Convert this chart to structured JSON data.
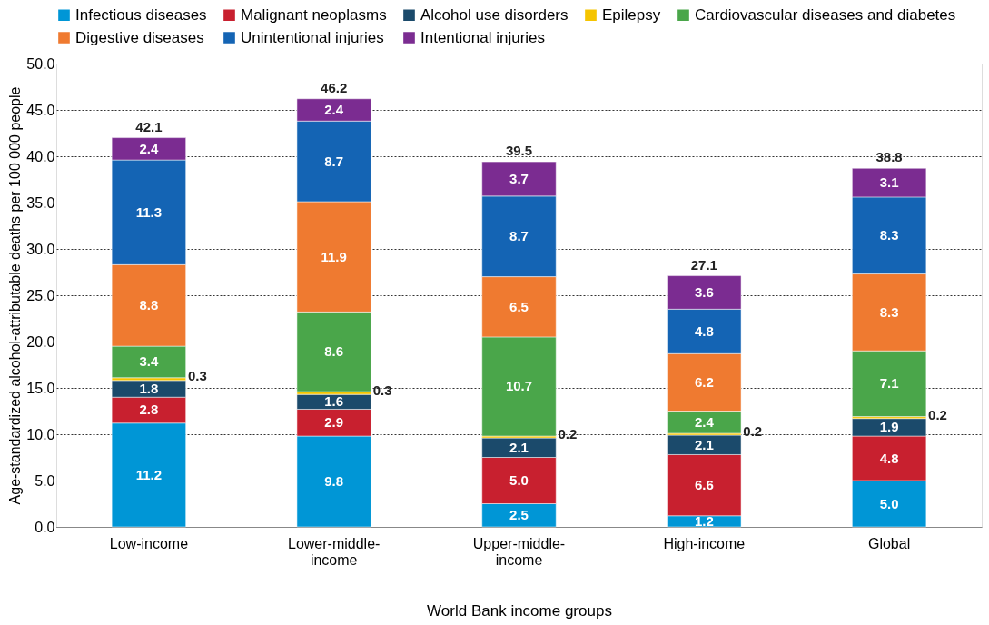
{
  "chart_data": {
    "type": "bar",
    "stacked": true,
    "xlabel": "World Bank income groups",
    "ylabel": "Age-standardized alcohol-attributable deaths per 100 000 people",
    "categories": [
      "Low-income",
      "Lower-middle-income",
      "Upper-middle-income",
      "High-income",
      "Global"
    ],
    "series": [
      {
        "name": "Infectious diseases",
        "color": "#0096d6",
        "values": [
          11.2,
          9.8,
          2.5,
          1.2,
          5.0
        ],
        "value_labels": [
          "11.2",
          "9.8",
          "2.5",
          "1.2",
          "5.0"
        ]
      },
      {
        "name": "Malignant neoplasms",
        "color": "#c8202f",
        "values": [
          2.8,
          2.9,
          5.0,
          6.6,
          4.8
        ],
        "value_labels": [
          "2.8",
          "2.9",
          "5.0",
          "6.6",
          "4.8"
        ]
      },
      {
        "name": "Alcohol use disorders",
        "color": "#1b4a6b",
        "values": [
          1.8,
          1.6,
          2.1,
          2.1,
          1.9
        ],
        "value_labels": [
          "1.8",
          "1.6",
          "2.1",
          "2.1",
          "1.9"
        ]
      },
      {
        "name": "Epilepsy",
        "color": "#f5c400",
        "values": [
          0.3,
          0.3,
          0.2,
          0.2,
          0.2
        ],
        "value_labels": [
          "0.3",
          "0.3",
          "0.2",
          "0.2",
          "0.2"
        ]
      },
      {
        "name": "Cardiovascular diseases and diabetes",
        "color": "#4aa64a",
        "values": [
          3.4,
          8.6,
          10.7,
          2.4,
          7.1
        ],
        "value_labels": [
          "3.4",
          "8.6",
          "10.7",
          "2.4",
          "7.1"
        ]
      },
      {
        "name": "Digestive diseases",
        "color": "#ef7a30",
        "values": [
          8.8,
          11.9,
          6.5,
          6.2,
          8.3
        ],
        "value_labels": [
          "8.8",
          "11.9",
          "6.5",
          "6.2",
          "8.3"
        ]
      },
      {
        "name": "Unintentional injuries",
        "color": "#1464b4",
        "values": [
          11.3,
          8.7,
          8.7,
          4.8,
          8.3
        ],
        "value_labels": [
          "11.3",
          "8.7",
          "8.7",
          "4.8",
          "8.3"
        ]
      },
      {
        "name": "Intentional injuries",
        "color": "#7b2c91",
        "values": [
          2.4,
          2.4,
          3.7,
          3.6,
          3.1
        ],
        "value_labels": [
          "2.4",
          "2.4",
          "3.7",
          "3.6",
          "3.1"
        ]
      }
    ],
    "totals": [
      "42.1",
      "46.2",
      "39.5",
      "27.1",
      "38.8"
    ],
    "ylim": [
      0,
      50
    ],
    "yticks": [
      {
        "value": 0,
        "label": "0.0"
      },
      {
        "value": 5,
        "label": "5.0"
      },
      {
        "value": 10,
        "label": "10.0"
      },
      {
        "value": 15,
        "label": "15.0"
      },
      {
        "value": 20,
        "label": "20.0"
      },
      {
        "value": 25,
        "label": "25.0"
      },
      {
        "value": 30,
        "label": "30.0"
      },
      {
        "value": 35,
        "label": "35.0"
      },
      {
        "value": 40,
        "label": "40.0"
      },
      {
        "value": 45,
        "label": "45.0"
      },
      {
        "value": 50,
        "label": "50.0"
      }
    ],
    "grid": "y",
    "legend": "top"
  }
}
